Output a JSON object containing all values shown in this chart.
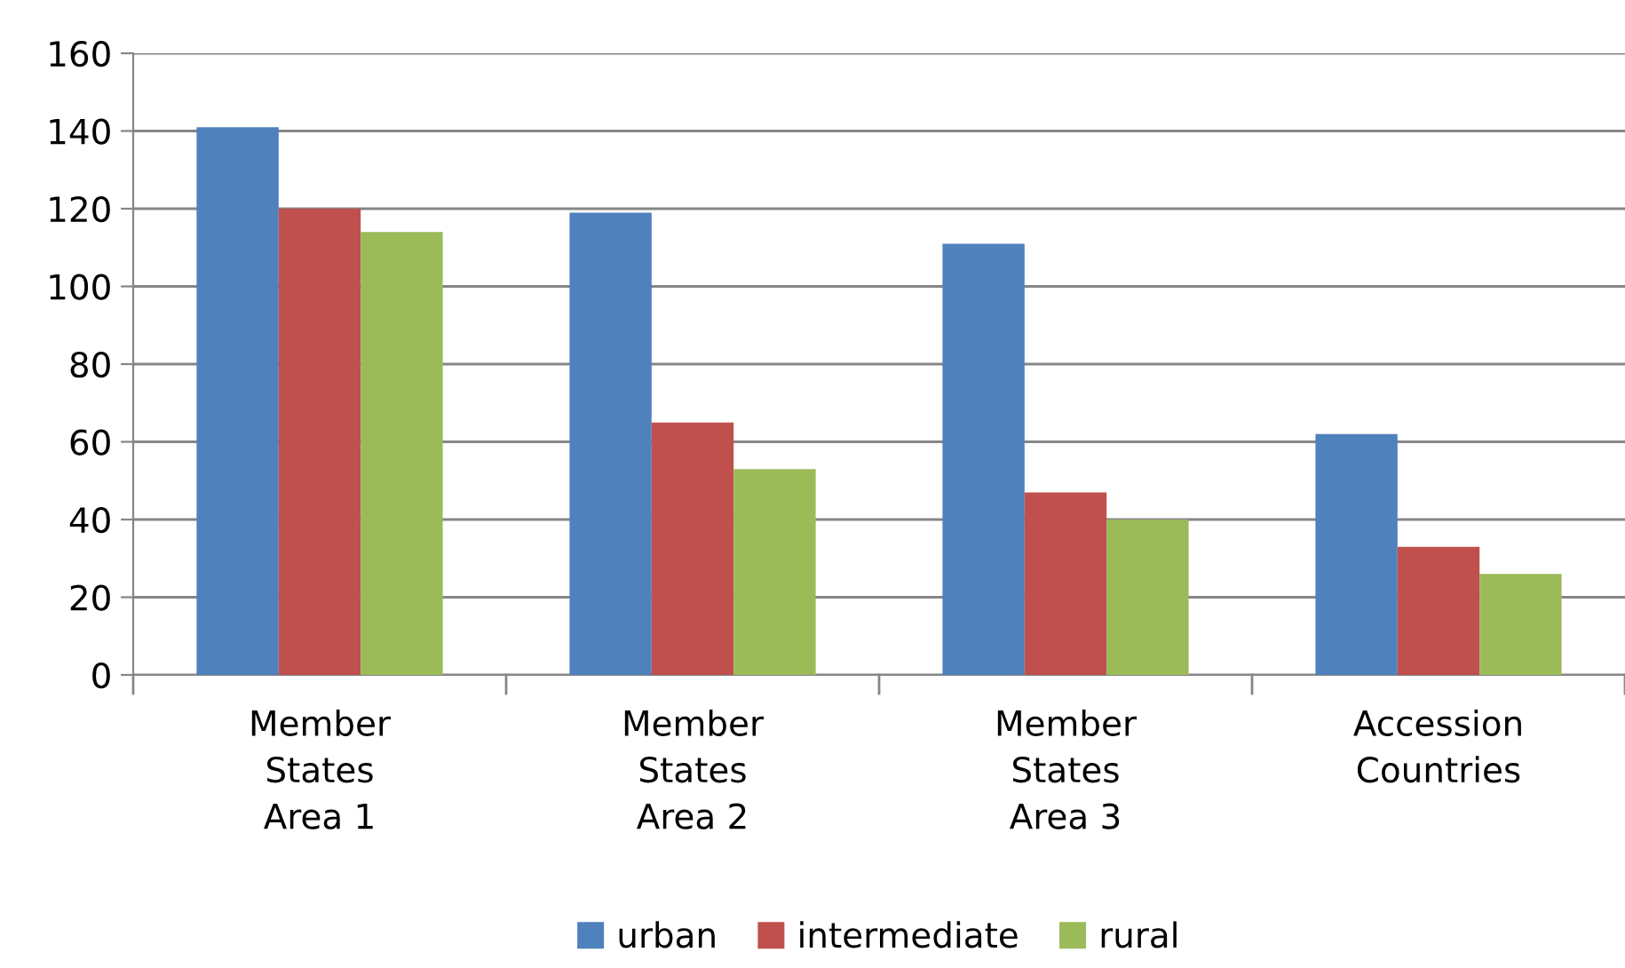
{
  "chart_data": {
    "type": "bar",
    "categories": [
      "Member\nStates\nArea 1",
      "Member\nStates\nArea 2",
      "Member\nStates\nArea 3",
      "Accession\nCountries"
    ],
    "series": [
      {
        "name": "urban",
        "color": "#4f81bd",
        "values": [
          141,
          119,
          111,
          62
        ]
      },
      {
        "name": "intermediate",
        "color": "#c0504d",
        "values": [
          120,
          65,
          47,
          33
        ]
      },
      {
        "name": "rural",
        "color": "#9bbb59",
        "values": [
          114,
          53,
          40,
          26
        ]
      }
    ],
    "ylim": [
      0,
      160
    ],
    "yticks": [
      0,
      20,
      40,
      60,
      80,
      100,
      120,
      140,
      160
    ],
    "grid": "y",
    "legend": "bottom"
  }
}
